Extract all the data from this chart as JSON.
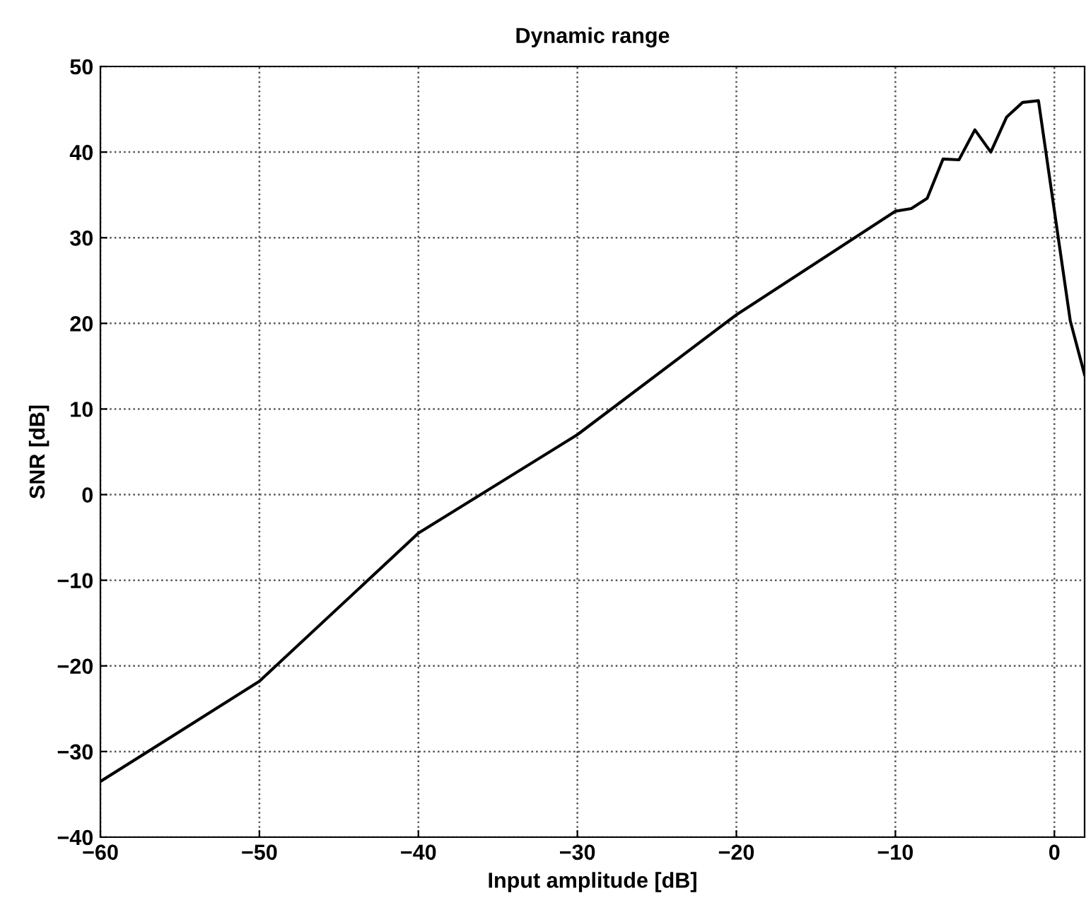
{
  "chart_data": {
    "type": "line",
    "title": "Dynamic range",
    "xlabel": "Input amplitude [dB]",
    "ylabel": "SNR [dB]",
    "x": [
      -60,
      -50,
      -40,
      -30,
      -20,
      -10,
      -9,
      -8,
      -7,
      -6,
      -5,
      -4,
      -3,
      -2,
      -1,
      1,
      1.9
    ],
    "series": [
      {
        "color": "#000000",
        "values": [
          -33.5,
          -21.8,
          -4.5,
          7,
          21,
          33.1,
          33.4,
          34.6,
          39.2,
          39.1,
          42.6,
          40.0,
          44.1,
          45.8,
          46.0,
          20.3,
          14.0
        ]
      }
    ],
    "xlim": [
      -60,
      1.9
    ],
    "xticks": [
      -60,
      -50,
      -40,
      -30,
      -20,
      -10,
      0
    ],
    "ylim": [
      -40,
      50
    ],
    "yticks": [
      -40,
      -30,
      -20,
      -10,
      0,
      10,
      20,
      30,
      40,
      50
    ],
    "grid": true,
    "marker": "none",
    "line_style": "solid"
  }
}
